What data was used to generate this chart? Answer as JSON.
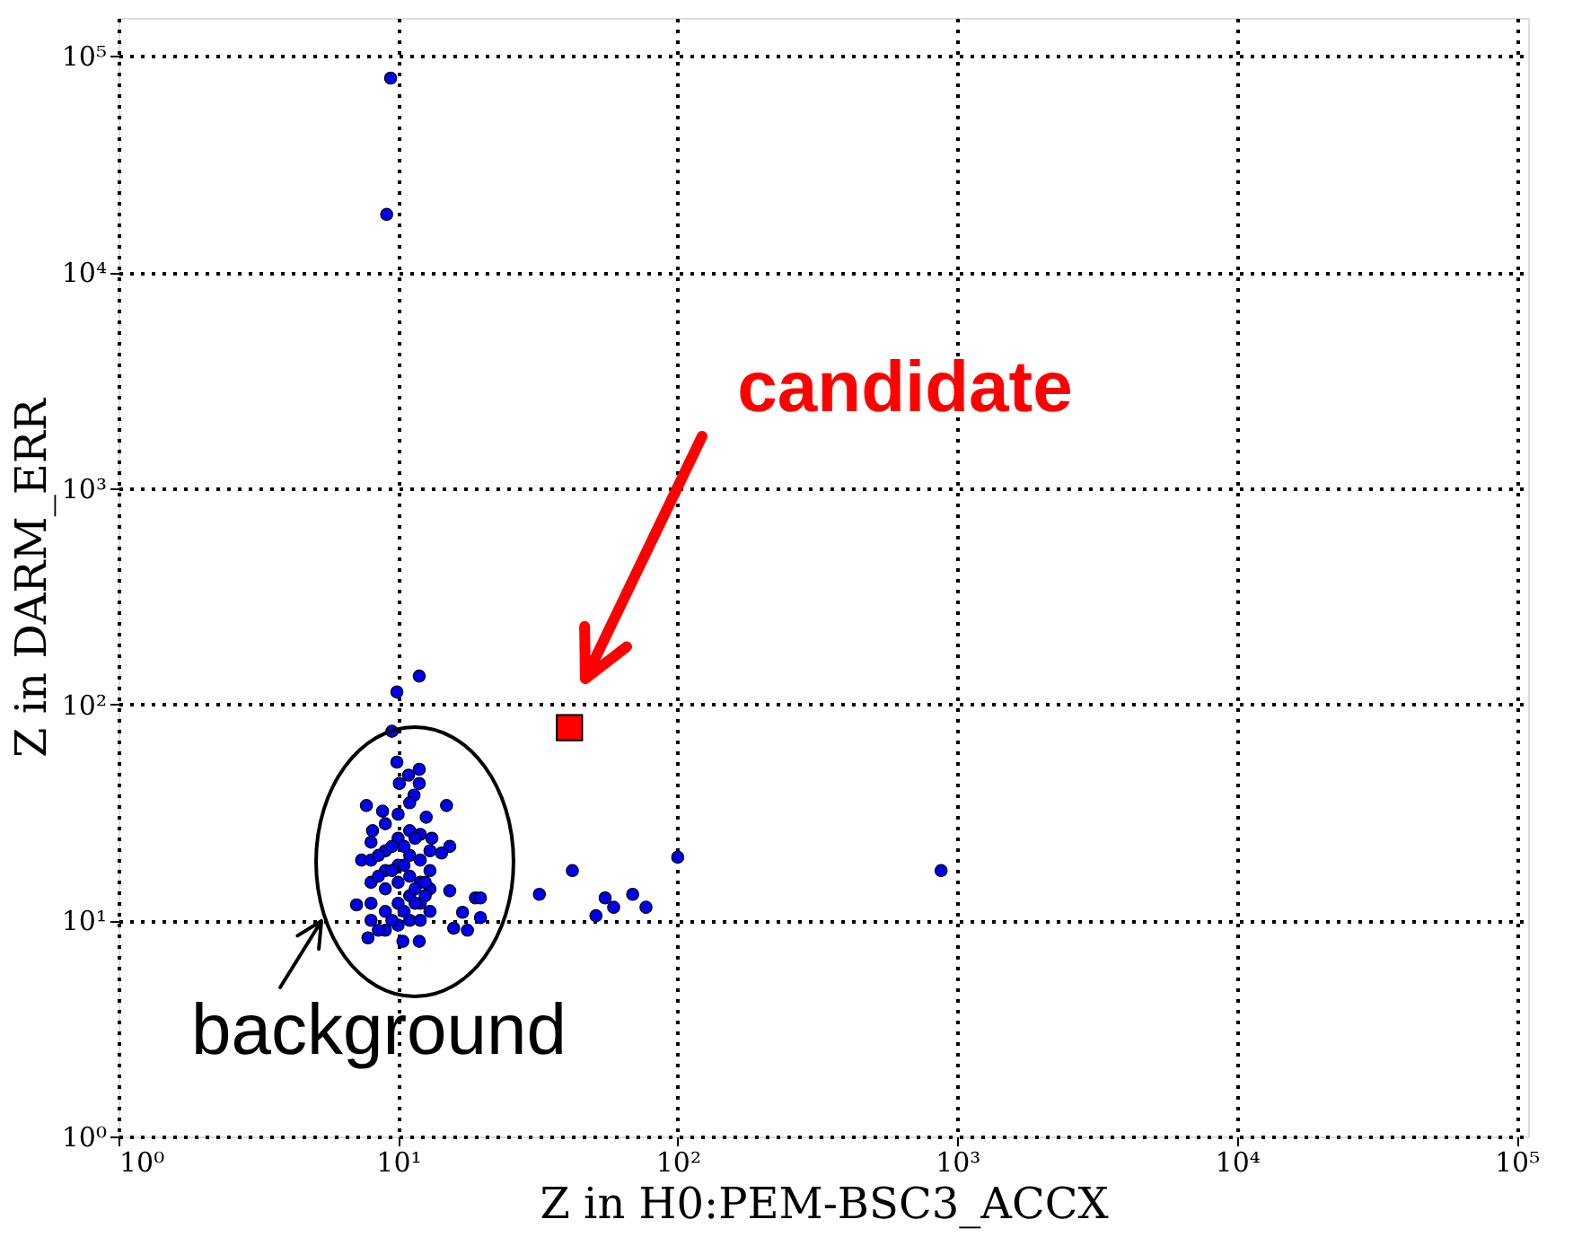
{
  "chart_data": {
    "type": "scatter",
    "xlabel": "Z in H0:PEM-BSC3_ACCX",
    "ylabel": "Z in DARM_ERR",
    "xlim": [
      1,
      110000
    ],
    "ylim": [
      1,
      150000
    ],
    "xticks": [
      {
        "value": 1,
        "label": "10⁰"
      },
      {
        "value": 10,
        "label": "10¹"
      },
      {
        "value": 100,
        "label": "10²"
      },
      {
        "value": 1000,
        "label": "10³"
      },
      {
        "value": 10000,
        "label": "10⁴"
      },
      {
        "value": 100000,
        "label": "10⁵"
      }
    ],
    "yticks": [
      {
        "value": 1,
        "label": "10⁰"
      },
      {
        "value": 10,
        "label": "10¹"
      },
      {
        "value": 100,
        "label": "10²"
      },
      {
        "value": 1000,
        "label": "10³"
      },
      {
        "value": 10000,
        "label": "10⁴"
      },
      {
        "value": 100000,
        "label": "10⁵"
      }
    ],
    "log": "xy",
    "grid": true,
    "legend": false,
    "series": [
      {
        "color": "#0000ee",
        "marker": "circle",
        "x": [
          9.4,
          9.1,
          11.9,
          9.9,
          9.5,
          32,
          42,
          51,
          55,
          59,
          69,
          77,
          100,
          875,
          9.9,
          10.9,
          11.9,
          10.1,
          11.9,
          11.4,
          7.7,
          14.9,
          8.8,
          12.6,
          13.2,
          8.1,
          15.3,
          7.4,
          14.3,
          15.3,
          18.9,
          19.7,
          7.1,
          7.8,
          10.4,
          11.9,
          15.8,
          17.7,
          19.7,
          17,
          8,
          8,
          8,
          8,
          8,
          9,
          9,
          9,
          9,
          9,
          9,
          10,
          10,
          10,
          10,
          10,
          10,
          11,
          11,
          11,
          11,
          11,
          11,
          12,
          12,
          12,
          12,
          12,
          13,
          13,
          13,
          13,
          8.5,
          9.5,
          10.5,
          11.5,
          12.5,
          8.5,
          9.5,
          10.5,
          11.5,
          12.5,
          8.5,
          9.5,
          10.5,
          11.5
        ],
        "values": [
          79000,
          18500,
          135,
          114,
          75,
          13.2,
          17,
          10.5,
          12.7,
          11.5,
          13.2,
          11.5,
          19.6,
          17,
          54,
          47,
          50,
          43,
          43,
          38,
          34,
          34,
          32,
          30,
          24,
          26,
          22,
          19,
          20.5,
          13.7,
          12.7,
          12.7,
          11.8,
          8.3,
          8,
          8,
          9.2,
          9,
          10.3,
          10.9,
          10,
          12,
          15,
          19,
          23,
          9,
          11,
          14,
          17,
          21,
          28,
          9.5,
          12,
          15,
          18,
          24,
          31,
          10,
          13,
          16,
          20,
          26,
          35,
          10,
          12,
          15,
          19,
          25,
          11,
          14,
          17,
          21,
          9,
          10,
          11,
          12,
          13,
          16,
          17,
          18,
          14,
          15,
          20,
          22,
          22,
          24
        ]
      },
      {
        "color": "#ff0000",
        "marker": "square",
        "x": [
          41
        ],
        "values": [
          78
        ]
      }
    ],
    "annotations": [
      "candidate",
      "background"
    ]
  }
}
